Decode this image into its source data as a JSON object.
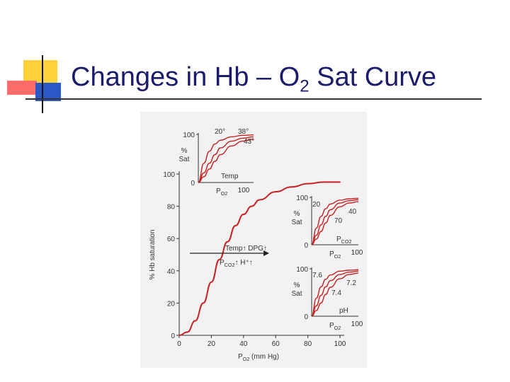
{
  "title": {
    "main": "Changes in Hb – O",
    "sub": "2",
    "rest": " Sat Curve"
  },
  "colors": {
    "curve": "#c82020",
    "title": "#1b1b6b",
    "axis": "#333333"
  },
  "chart_data": [
    {
      "type": "line",
      "title": "",
      "xlabel": "P",
      "xlabel_sub": "O2",
      "xlabel_unit": "(mm Hg)",
      "ylabel": "% Hb saturation",
      "xlim": [
        0,
        100
      ],
      "ylim": [
        0,
        100
      ],
      "xticks": [
        0,
        20,
        40,
        60,
        80,
        100
      ],
      "yticks": [
        0,
        20,
        40,
        60,
        80,
        100
      ],
      "series": [
        {
          "x": [
            0,
            5,
            10,
            15,
            20,
            25,
            30,
            35,
            40,
            45,
            50,
            60,
            70,
            80,
            90,
            100
          ],
          "values": [
            0,
            2,
            9,
            20,
            33,
            47,
            58,
            68,
            75,
            80,
            84,
            89,
            92,
            94,
            95,
            95
          ]
        }
      ],
      "annotations": {
        "right_shift": "Temp↑  DPG↑",
        "right_shift_line2_p": "P",
        "right_shift_line2_sub": "CO2",
        "right_shift_line2_rest": "↑   H⁺↑"
      }
    },
    {
      "type": "line",
      "title": "",
      "variable": "Temp",
      "ylabel": "% Sat",
      "xlabel": "P",
      "xlabel_sub": "O2",
      "xlim": [
        0,
        100
      ],
      "ylim": [
        0,
        100
      ],
      "ytick_labels": [
        "100",
        "0"
      ],
      "xtick_labels": [
        "100"
      ],
      "series": [
        {
          "name": "20°",
          "x": [
            0,
            10,
            20,
            30,
            40,
            60,
            80,
            100
          ],
          "values": [
            0,
            40,
            65,
            80,
            88,
            95,
            98,
            99
          ]
        },
        {
          "name": "38°",
          "x": [
            0,
            10,
            20,
            30,
            40,
            60,
            80,
            100
          ],
          "values": [
            0,
            20,
            40,
            58,
            72,
            86,
            92,
            95
          ]
        },
        {
          "name": "43°",
          "x": [
            0,
            10,
            20,
            30,
            40,
            60,
            80,
            100
          ],
          "values": [
            0,
            12,
            28,
            44,
            58,
            76,
            86,
            90
          ]
        }
      ]
    },
    {
      "type": "line",
      "title": "",
      "ylabel": "% Sat",
      "xlabel": "P",
      "xlabel_sub": "O2",
      "variable_p": "P",
      "variable_sub": "CO2",
      "xlim": [
        0,
        100
      ],
      "ylim": [
        0,
        100
      ],
      "ytick_labels": [
        "100",
        "0"
      ],
      "xtick_labels": [
        "100"
      ],
      "series": [
        {
          "name": "20",
          "x": [
            0,
            10,
            20,
            30,
            40,
            60,
            80,
            100
          ],
          "values": [
            0,
            35,
            60,
            76,
            86,
            94,
            97,
            98
          ]
        },
        {
          "name": "40",
          "x": [
            0,
            10,
            20,
            30,
            40,
            60,
            80,
            100
          ],
          "values": [
            0,
            20,
            42,
            60,
            74,
            88,
            93,
            95
          ]
        },
        {
          "name": "70",
          "x": [
            0,
            10,
            20,
            30,
            40,
            60,
            80,
            100
          ],
          "values": [
            0,
            12,
            28,
            46,
            62,
            80,
            88,
            91
          ]
        }
      ]
    },
    {
      "type": "line",
      "title": "",
      "variable": "pH",
      "ylabel": "% Sat",
      "xlabel": "P",
      "xlabel_sub": "O2",
      "xlim": [
        0,
        100
      ],
      "ylim": [
        0,
        100
      ],
      "ytick_labels": [
        "100",
        "0"
      ],
      "xtick_labels": [
        "100"
      ],
      "series": [
        {
          "name": "7.6",
          "x": [
            0,
            10,
            20,
            30,
            40,
            60,
            80,
            100
          ],
          "values": [
            0,
            38,
            62,
            78,
            87,
            95,
            97,
            98
          ]
        },
        {
          "name": "7.4",
          "x": [
            0,
            10,
            20,
            30,
            40,
            60,
            80,
            100
          ],
          "values": [
            0,
            22,
            44,
            62,
            75,
            88,
            93,
            95
          ]
        },
        {
          "name": "7.2",
          "x": [
            0,
            10,
            20,
            30,
            40,
            60,
            80,
            100
          ],
          "values": [
            0,
            12,
            28,
            46,
            61,
            79,
            88,
            91
          ]
        }
      ]
    }
  ]
}
